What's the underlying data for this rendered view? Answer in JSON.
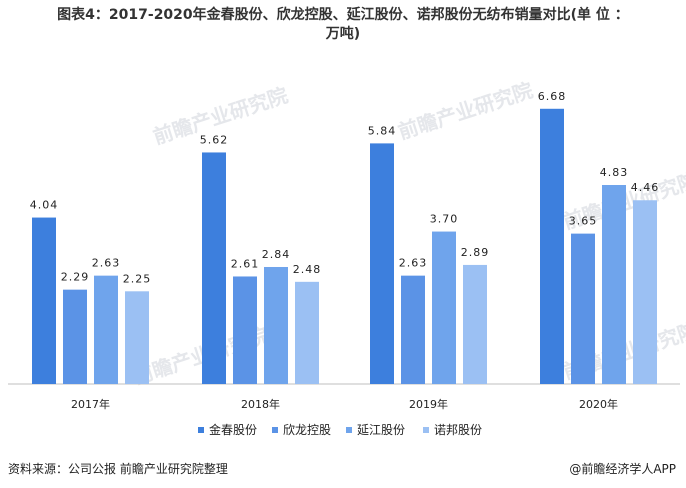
{
  "title_line1": "图表4：2017-2020年金春股份、欣龙控股、延江股份、诺邦股份无纺布销量对比(单 位 ：",
  "title_line2": "万吨)",
  "source": "资料来源：公司公报 前瞻产业研究院整理",
  "brand": "@前瞻经济学人APP",
  "watermark": "前瞻产业研究院",
  "colors": {
    "series": [
      "#3d7fdd",
      "#5b93e6",
      "#6fa4ec",
      "#9bc0f3"
    ],
    "axis": "#bfbfbf",
    "watermark": "#e5e7eb"
  },
  "chart_data": {
    "type": "bar",
    "title": "图表4：2017-2020年金春股份、欣龙控股、延江股份、诺邦股份无纺布销量对比(单 位 ：万吨)",
    "categories": [
      "2017年",
      "2018年",
      "2019年",
      "2020年"
    ],
    "series": [
      {
        "name": "金春股份",
        "values": [
          4.04,
          5.62,
          5.84,
          6.68
        ]
      },
      {
        "name": "欣龙控股",
        "values": [
          2.29,
          2.61,
          2.63,
          3.65
        ]
      },
      {
        "name": "延江股份",
        "values": [
          2.63,
          2.84,
          3.7,
          4.83
        ]
      },
      {
        "name": "诺邦股份",
        "values": [
          2.25,
          2.48,
          2.89,
          4.46
        ]
      }
    ],
    "data_labels": [
      [
        "4.04",
        "5.62",
        "5.84",
        "6.68"
      ],
      [
        "2.29",
        "2.61",
        "2.63",
        "3.65"
      ],
      [
        "2.63",
        "2.84",
        "3.70",
        "4.83"
      ],
      [
        "2.25",
        "2.48",
        "2.89",
        "4.46"
      ]
    ],
    "ylim": [
      0,
      7.5
    ],
    "grid": false,
    "legend_position": "bottom-center"
  }
}
